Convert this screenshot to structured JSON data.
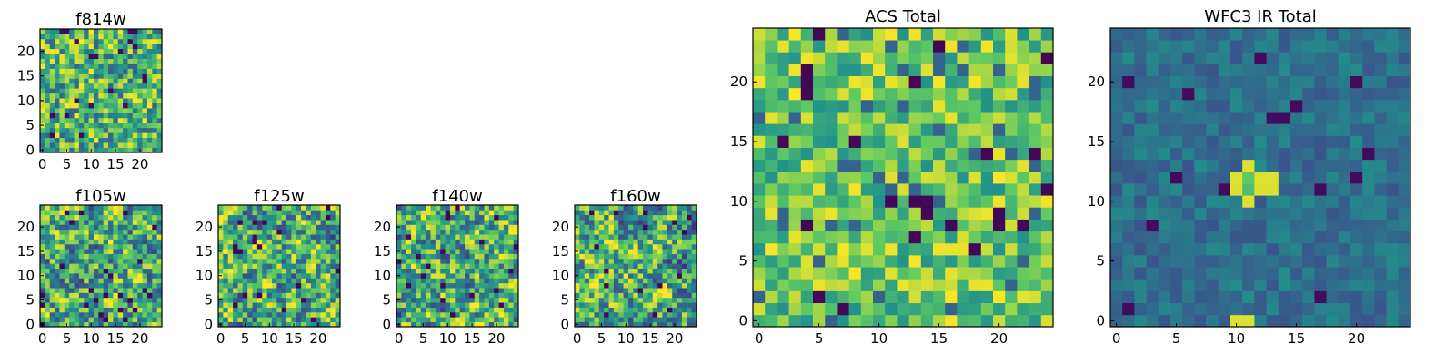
{
  "chart_data": [
    {
      "type": "heatmap",
      "title": "f814w",
      "grid_size": 25,
      "seed": 11,
      "style": "noise",
      "xticks": [
        0,
        5,
        10,
        15,
        20
      ],
      "yticks": [
        0,
        5,
        10,
        15,
        20
      ]
    },
    {
      "type": "heatmap",
      "title": "f105w",
      "grid_size": 25,
      "seed": 23,
      "style": "smooth",
      "xticks": [
        0,
        5,
        10,
        15,
        20
      ],
      "yticks": [
        0,
        5,
        10,
        15,
        20
      ]
    },
    {
      "type": "heatmap",
      "title": "f125w",
      "grid_size": 25,
      "seed": 37,
      "style": "smooth",
      "xticks": [
        0,
        5,
        10,
        15,
        20
      ],
      "yticks": [
        0,
        5,
        10,
        15,
        20
      ]
    },
    {
      "type": "heatmap",
      "title": "f140w",
      "grid_size": 25,
      "seed": 41,
      "style": "smooth",
      "xticks": [
        0,
        5,
        10,
        15,
        20
      ],
      "yticks": [
        0,
        5,
        10,
        15,
        20
      ]
    },
    {
      "type": "heatmap",
      "title": "f160w",
      "grid_size": 25,
      "seed": 53,
      "style": "smooth",
      "xticks": [
        0,
        5,
        10,
        15,
        20
      ],
      "yticks": [
        0,
        5,
        10,
        15,
        20
      ]
    },
    {
      "type": "heatmap",
      "title": "ACS Total",
      "grid_size": 25,
      "seed": 67,
      "style": "bright",
      "xticks": [
        0,
        5,
        10,
        15,
        20
      ],
      "yticks": [
        0,
        5,
        10,
        15,
        20
      ]
    },
    {
      "type": "heatmap",
      "title": "WFC3 IR Total",
      "grid_size": 25,
      "seed": 79,
      "style": "dark_source",
      "xticks": [
        0,
        5,
        10,
        15,
        20
      ],
      "yticks": [
        0,
        5,
        10,
        15,
        20
      ]
    }
  ],
  "colormap": {
    "name": "viridis",
    "stops": [
      "#440154",
      "#3b528b",
      "#21918c",
      "#5ec962",
      "#fde725"
    ]
  }
}
